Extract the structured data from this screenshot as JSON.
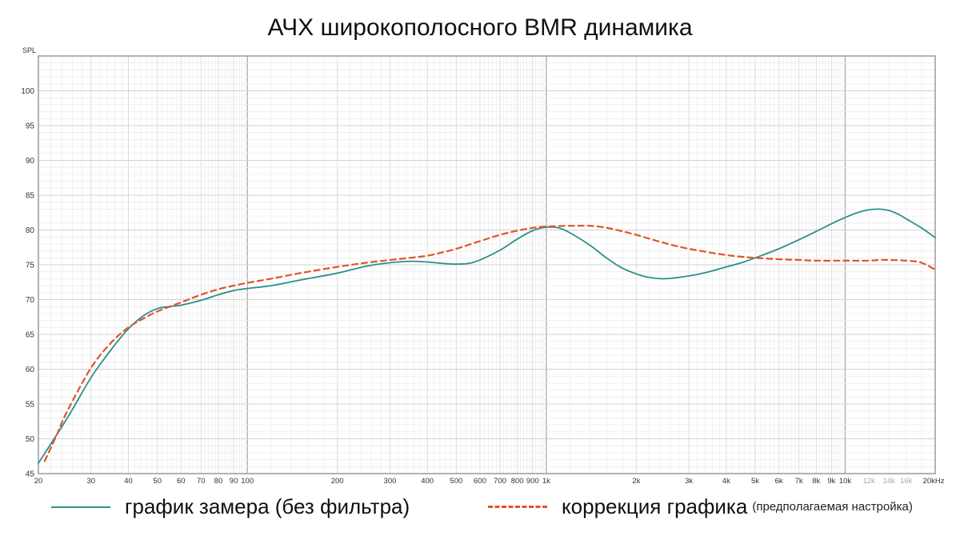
{
  "chart_data": {
    "type": "line",
    "title": "АЧХ широкополосного BMR динамика",
    "ylabel": "SPL",
    "xlabel": "",
    "xscale": "log",
    "xlim": [
      20,
      20000
    ],
    "ylim": [
      45,
      105
    ],
    "grid": true,
    "legend_position": "bottom",
    "y_ticks": [
      "100",
      "95",
      "90",
      "85",
      "80",
      "75",
      "70",
      "65",
      "60",
      "55",
      "50",
      "45"
    ],
    "y_tick_values": [
      100,
      95,
      90,
      85,
      80,
      75,
      70,
      65,
      60,
      55,
      50,
      45
    ],
    "x_ticks": [
      {
        "value": 20,
        "label": "20",
        "faint": false
      },
      {
        "value": 30,
        "label": "30",
        "faint": false
      },
      {
        "value": 40,
        "label": "40",
        "faint": false
      },
      {
        "value": 50,
        "label": "50",
        "faint": false
      },
      {
        "value": 60,
        "label": "60",
        "faint": false
      },
      {
        "value": 70,
        "label": "70",
        "faint": false
      },
      {
        "value": 80,
        "label": "80",
        "faint": false
      },
      {
        "value": 90,
        "label": "90",
        "faint": false
      },
      {
        "value": 100,
        "label": "100",
        "faint": false
      },
      {
        "value": 200,
        "label": "200",
        "faint": false
      },
      {
        "value": 300,
        "label": "300",
        "faint": false
      },
      {
        "value": 400,
        "label": "400",
        "faint": false
      },
      {
        "value": 500,
        "label": "500",
        "faint": false
      },
      {
        "value": 600,
        "label": "600",
        "faint": false
      },
      {
        "value": 700,
        "label": "700",
        "faint": false
      },
      {
        "value": 800,
        "label": "800",
        "faint": false
      },
      {
        "value": 900,
        "label": "900",
        "faint": false
      },
      {
        "value": 1000,
        "label": "1k",
        "faint": false
      },
      {
        "value": 2000,
        "label": "2k",
        "faint": false
      },
      {
        "value": 3000,
        "label": "3k",
        "faint": false
      },
      {
        "value": 4000,
        "label": "4k",
        "faint": false
      },
      {
        "value": 5000,
        "label": "5k",
        "faint": false
      },
      {
        "value": 6000,
        "label": "6k",
        "faint": false
      },
      {
        "value": 7000,
        "label": "7k",
        "faint": false
      },
      {
        "value": 8000,
        "label": "8k",
        "faint": false
      },
      {
        "value": 9000,
        "label": "9k",
        "faint": false
      },
      {
        "value": 10000,
        "label": "10k",
        "faint": false
      },
      {
        "value": 12000,
        "label": "12k",
        "faint": true
      },
      {
        "value": 14000,
        "label": "14k",
        "faint": true
      },
      {
        "value": 16000,
        "label": "16k",
        "faint": true
      },
      {
        "value": 20000,
        "label": "20kHz",
        "faint": false
      }
    ],
    "series": [
      {
        "name": "график  замера (без фильтра)",
        "color": "#2a9088",
        "style": "solid",
        "x": [
          20,
          25,
          30,
          35,
          40,
          45,
          50,
          55,
          60,
          70,
          80,
          90,
          100,
          120,
          150,
          200,
          250,
          300,
          350,
          400,
          450,
          500,
          550,
          600,
          700,
          800,
          900,
          1000,
          1100,
          1200,
          1400,
          1600,
          1800,
          2000,
          2200,
          2500,
          3000,
          3500,
          4000,
          4500,
          5000,
          6000,
          7000,
          8000,
          9000,
          10000,
          11000,
          12000,
          13000,
          14000,
          15000,
          16000,
          18000,
          20000
        ],
        "y": [
          46.5,
          53.0,
          58.8,
          62.8,
          65.8,
          67.7,
          68.7,
          69.0,
          69.2,
          69.9,
          70.7,
          71.3,
          71.6,
          72.0,
          72.8,
          73.8,
          74.8,
          75.3,
          75.5,
          75.4,
          75.2,
          75.1,
          75.2,
          75.7,
          77.1,
          78.7,
          79.9,
          80.4,
          80.3,
          79.6,
          77.8,
          75.9,
          74.5,
          73.7,
          73.2,
          73.0,
          73.4,
          74.0,
          74.7,
          75.3,
          76.0,
          77.3,
          78.6,
          79.8,
          80.9,
          81.8,
          82.5,
          82.9,
          83.0,
          82.8,
          82.3,
          81.6,
          80.3,
          78.9
        ]
      },
      {
        "name": "коррекция графика",
        "note": "(предполагаемая настройка)",
        "color": "#e0542a",
        "style": "dashed",
        "x": [
          21,
          23,
          25,
          30,
          35,
          40,
          45,
          50,
          60,
          70,
          80,
          90,
          100,
          120,
          150,
          200,
          250,
          300,
          350,
          400,
          450,
          500,
          600,
          700,
          800,
          900,
          1000,
          1200,
          1400,
          1600,
          1800,
          2000,
          2500,
          3000,
          4000,
          5000,
          6000,
          7000,
          8000,
          10000,
          12000,
          13000,
          14000,
          16000,
          18000,
          20000
        ],
        "y": [
          46.8,
          50.5,
          54.0,
          60.2,
          63.8,
          66.0,
          67.3,
          68.3,
          69.6,
          70.7,
          71.5,
          72.0,
          72.4,
          73.0,
          73.8,
          74.7,
          75.3,
          75.7,
          76.0,
          76.3,
          76.8,
          77.3,
          78.4,
          79.3,
          79.9,
          80.3,
          80.5,
          80.6,
          80.6,
          80.3,
          79.8,
          79.3,
          78.1,
          77.3,
          76.4,
          76.0,
          75.8,
          75.7,
          75.6,
          75.6,
          75.6,
          75.7,
          75.7,
          75.6,
          75.3,
          74.3
        ]
      }
    ]
  }
}
